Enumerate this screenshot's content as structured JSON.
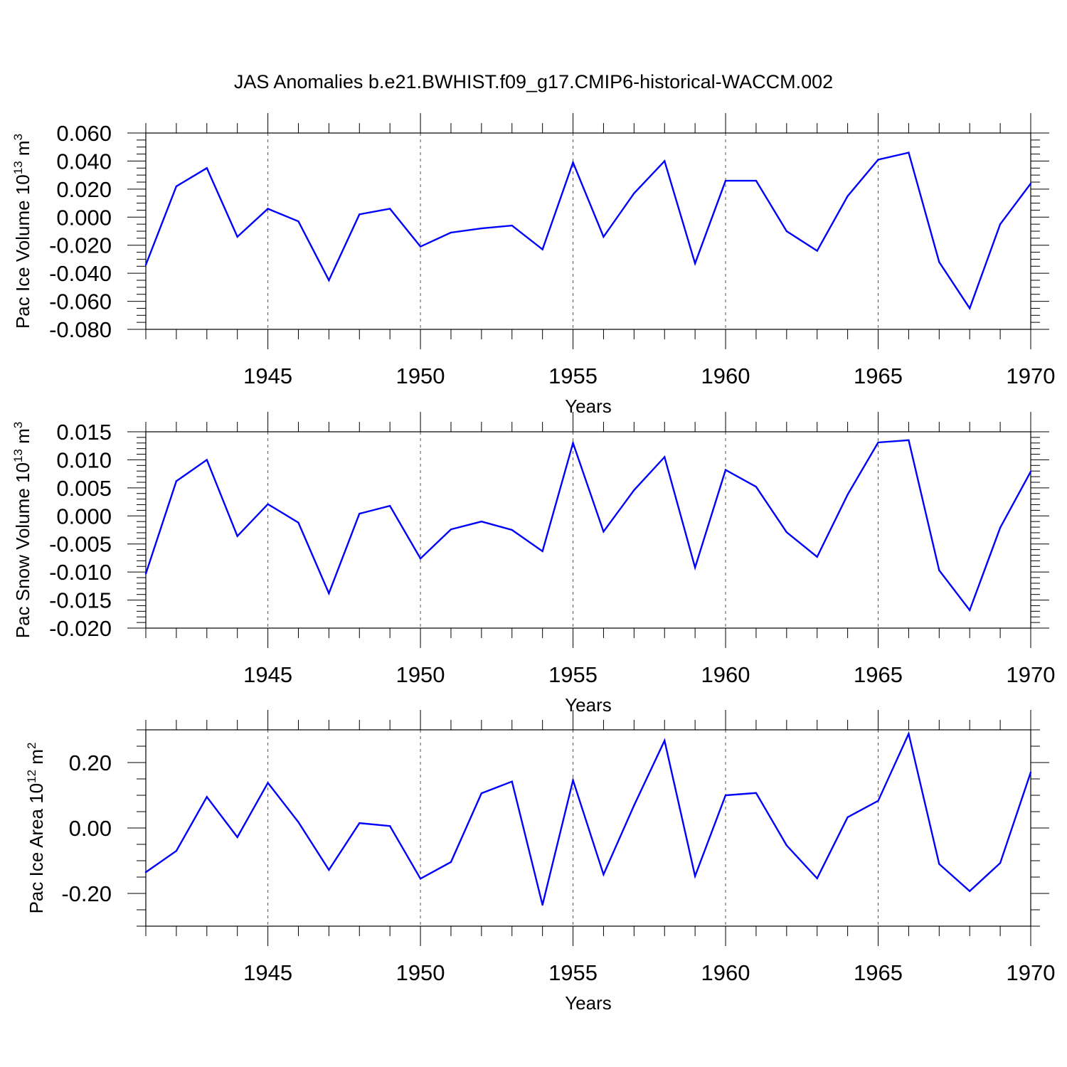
{
  "title": "JAS Anomalies b.e21.BWHIST.f09_g17.CMIP6-historical-WACCM.002",
  "colors": {
    "line": "#0000ff",
    "axis": "#000000",
    "grid": "#555555"
  },
  "chart_data": [
    {
      "type": "line",
      "ylabel": {
        "prefix": "Pac Ice Volume 10",
        "exp": "13",
        "unit": " m",
        "unit_exp": "3"
      },
      "xlabel": "Years",
      "xlim": [
        1941,
        1970
      ],
      "ylim": [
        -0.08,
        0.06
      ],
      "yticks": [
        -0.08,
        -0.06,
        -0.04,
        -0.02,
        0.0,
        0.02,
        0.04,
        0.06
      ],
      "ytick_labels": [
        "-0.080",
        "-0.060",
        "-0.040",
        "-0.020",
        "0.000",
        "0.020",
        "0.040",
        "0.060"
      ],
      "yminor_step": 0.005,
      "xticks": [
        1945,
        1950,
        1955,
        1960,
        1965,
        1970
      ],
      "xtick_labels": [
        "1945",
        "1950",
        "1955",
        "1960",
        "1965",
        "1970"
      ],
      "grid": "vertical dashed at major x ticks",
      "series": [
        {
          "name": "Pac Ice Volume",
          "x": [
            1941,
            1942,
            1943,
            1944,
            1945,
            1946,
            1947,
            1948,
            1949,
            1950,
            1951,
            1952,
            1953,
            1954,
            1955,
            1956,
            1957,
            1958,
            1959,
            1960,
            1961,
            1962,
            1963,
            1964,
            1965,
            1966,
            1967,
            1968,
            1969,
            1970
          ],
          "values": [
            -0.034,
            0.022,
            0.035,
            -0.014,
            0.006,
            -0.003,
            -0.045,
            0.002,
            0.006,
            -0.021,
            -0.011,
            -0.008,
            -0.006,
            -0.023,
            0.039,
            -0.014,
            0.017,
            0.04,
            -0.033,
            0.026,
            0.026,
            -0.01,
            -0.024,
            0.015,
            0.041,
            0.046,
            -0.032,
            -0.065,
            -0.005,
            0.024
          ]
        }
      ]
    },
    {
      "type": "line",
      "ylabel": {
        "prefix": "Pac Snow Volume 10",
        "exp": "13",
        "unit": " m",
        "unit_exp": "3"
      },
      "xlabel": "Years",
      "xlim": [
        1941,
        1970
      ],
      "ylim": [
        -0.02,
        0.015
      ],
      "yticks": [
        -0.02,
        -0.015,
        -0.01,
        -0.005,
        0.0,
        0.005,
        0.01,
        0.015
      ],
      "ytick_labels": [
        "-0.020",
        "-0.015",
        "-0.010",
        "-0.005",
        "0.000",
        "0.005",
        "0.010",
        "0.015"
      ],
      "yminor_step": 0.001,
      "xticks": [
        1945,
        1950,
        1955,
        1960,
        1965,
        1970
      ],
      "xtick_labels": [
        "1945",
        "1950",
        "1955",
        "1960",
        "1965",
        "1970"
      ],
      "grid": "vertical dashed at major x ticks",
      "series": [
        {
          "name": "Pac Snow Volume",
          "x": [
            1941,
            1942,
            1943,
            1944,
            1945,
            1946,
            1947,
            1948,
            1949,
            1950,
            1951,
            1952,
            1953,
            1954,
            1955,
            1956,
            1957,
            1958,
            1959,
            1960,
            1961,
            1962,
            1963,
            1964,
            1965,
            1966,
            1967,
            1968,
            1969,
            1970
          ],
          "values": [
            -0.0103,
            0.0062,
            0.01,
            -0.0036,
            0.0021,
            -0.0012,
            -0.0138,
            0.0004,
            0.0018,
            -0.0076,
            -0.0024,
            -0.001,
            -0.0025,
            -0.0063,
            0.013,
            -0.0028,
            0.0046,
            0.0105,
            -0.0092,
            0.0082,
            0.0052,
            -0.0029,
            -0.0073,
            0.0038,
            0.0131,
            0.0135,
            -0.0097,
            -0.0168,
            -0.0021,
            0.0079
          ]
        }
      ]
    },
    {
      "type": "line",
      "ylabel": {
        "prefix": "Pac Ice Area 10",
        "exp": "12",
        "unit": " m",
        "unit_exp": "2"
      },
      "xlabel": "Years",
      "xlim": [
        1941,
        1970
      ],
      "ylim": [
        -0.3,
        0.3
      ],
      "yticks": [
        -0.2,
        0.0,
        0.2
      ],
      "ytick_labels": [
        "-0.20",
        "0.00",
        "0.20"
      ],
      "yminor_step": 0.05,
      "xticks": [
        1945,
        1950,
        1955,
        1960,
        1965,
        1970
      ],
      "xtick_labels": [
        "1945",
        "1950",
        "1955",
        "1960",
        "1965",
        "1970"
      ],
      "grid": "vertical dashed at major x ticks",
      "series": [
        {
          "name": "Pac Ice Area",
          "x": [
            1941,
            1942,
            1943,
            1944,
            1945,
            1946,
            1947,
            1948,
            1949,
            1950,
            1951,
            1952,
            1953,
            1954,
            1955,
            1956,
            1957,
            1958,
            1959,
            1960,
            1961,
            1962,
            1963,
            1964,
            1965,
            1966,
            1967,
            1968,
            1969,
            1970
          ],
          "values": [
            -0.135,
            -0.07,
            0.095,
            -0.028,
            0.138,
            0.018,
            -0.128,
            0.015,
            0.006,
            -0.155,
            -0.104,
            0.106,
            0.142,
            -0.235,
            0.146,
            -0.142,
            0.069,
            0.267,
            -0.147,
            0.1,
            0.107,
            -0.053,
            -0.154,
            0.033,
            0.083,
            0.288,
            -0.11,
            -0.193,
            -0.107,
            0.17
          ]
        }
      ]
    }
  ]
}
